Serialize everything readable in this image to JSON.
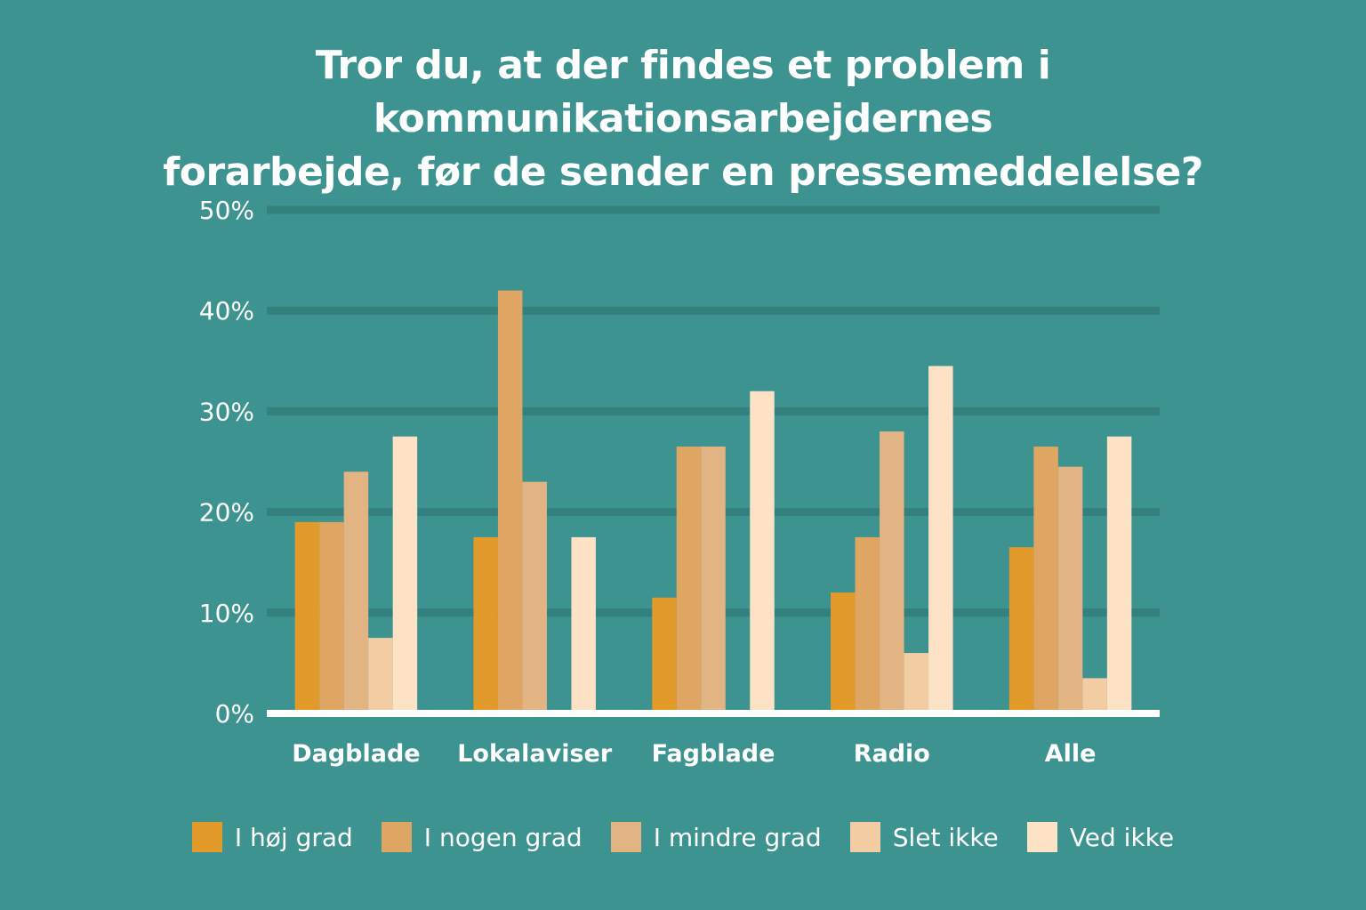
{
  "title": {
    "line1": "Tror du, at der findes et problem i kommunikationsarbejdernes",
    "line2": "forarbejde, før de sender en pressemeddelelse?"
  },
  "colors": {
    "background": "#3d9390",
    "gridline": "#33807d",
    "axis": "#ffffff",
    "series": [
      "#e29a2b",
      "#dfa563",
      "#e2b483",
      "#f2cda3",
      "#fde2c5"
    ]
  },
  "chart_data": {
    "type": "bar",
    "title": "Tror du, at der findes et problem i kommunikationsarbejdernes forarbejde, før de sender en pressemeddelelse?",
    "categories": [
      "Dagblade",
      "Lokalaviser",
      "Fagblade",
      "Radio",
      "Alle"
    ],
    "series": [
      {
        "name": "I høj grad",
        "values": [
          19,
          17.5,
          11.5,
          12,
          16.5
        ]
      },
      {
        "name": "I nogen grad",
        "values": [
          19,
          42,
          26.5,
          17.5,
          26.5
        ]
      },
      {
        "name": "I mindre grad",
        "values": [
          24,
          23,
          26.5,
          28,
          24.5
        ]
      },
      {
        "name": "Slet ikke",
        "values": [
          7.5,
          0,
          0,
          6,
          3.5
        ]
      },
      {
        "name": "Ved ikke",
        "values": [
          27.5,
          17.5,
          32,
          34.5,
          27.5
        ]
      }
    ],
    "yticks": [
      "0%",
      "10%",
      "20%",
      "30%",
      "40%",
      "50%"
    ],
    "ylim": [
      0,
      50
    ],
    "xlabel": "",
    "ylabel": "",
    "grid": true,
    "legend_position": "bottom"
  }
}
